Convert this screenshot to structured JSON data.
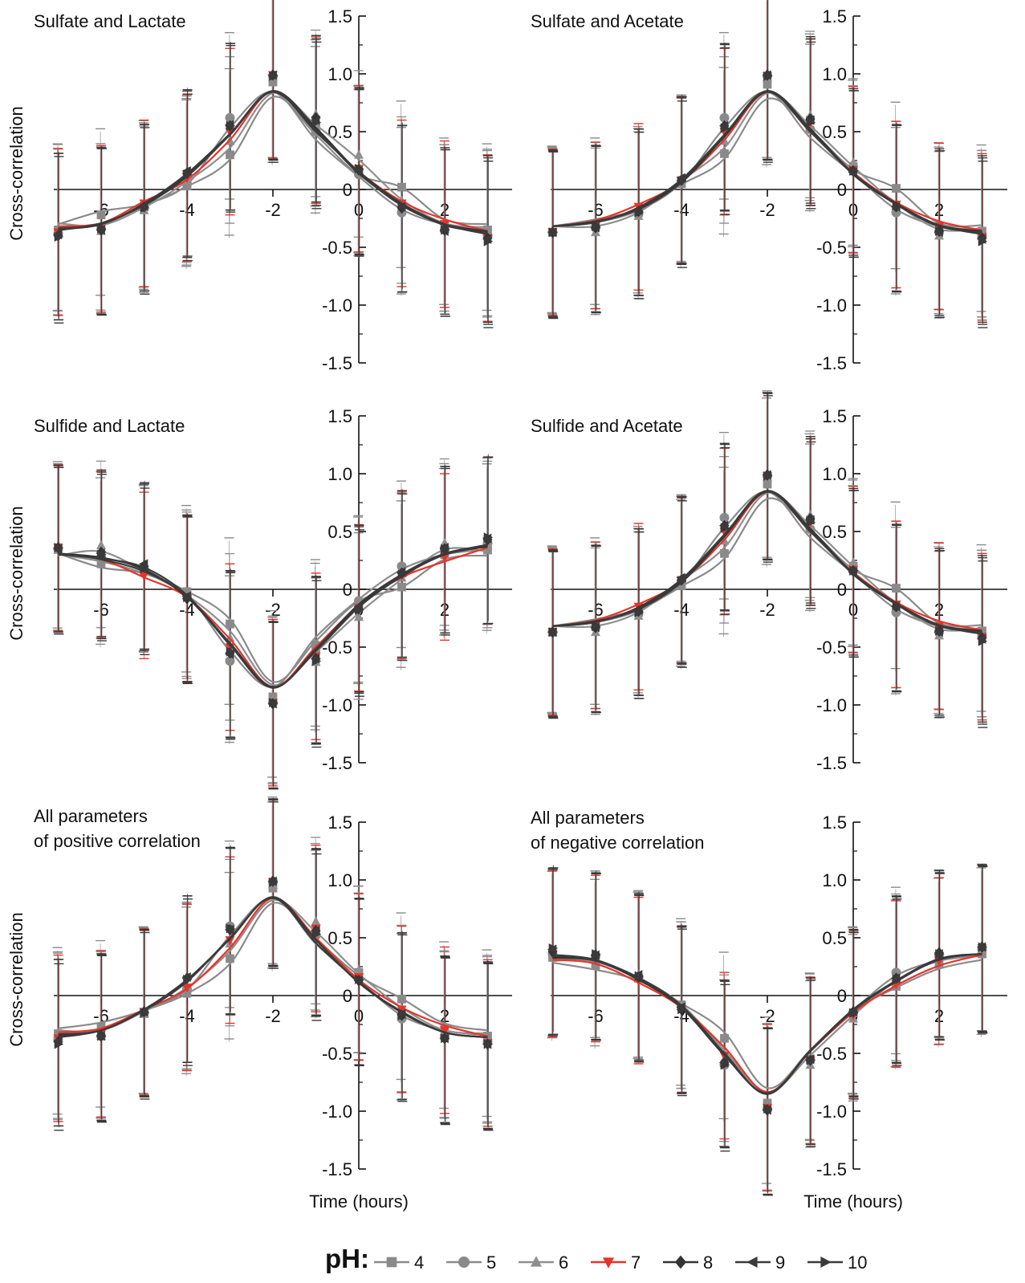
{
  "chart_data": [
    {
      "type": "line",
      "title": "Sulfate and Lactate",
      "xlabel": "",
      "ylabel": "Cross-correlation",
      "x": [
        -7,
        -6,
        -5,
        -4,
        -3,
        -2,
        -1,
        0,
        1,
        2,
        3
      ],
      "xticks": [
        "-6",
        "-4",
        "-2",
        "0",
        "2"
      ],
      "yticks": [
        "1.5",
        "1.0",
        "0.5",
        "0",
        "-0.5",
        "-1.0",
        "-1.5"
      ],
      "ylim": [
        -1.5,
        1.5
      ],
      "series": [
        {
          "name": "4",
          "values": [
            -0.35,
            -0.22,
            -0.15,
            0.03,
            0.3,
            0.93,
            0.55,
            0.15,
            0.02,
            -0.3,
            -0.35
          ]
        },
        {
          "name": "5",
          "values": [
            -0.38,
            -0.34,
            -0.16,
            0.05,
            0.62,
            0.98,
            0.5,
            0.13,
            -0.2,
            -0.35,
            -0.4
          ]
        },
        {
          "name": "6",
          "values": [
            -0.34,
            -0.36,
            -0.18,
            0.08,
            0.42,
            0.97,
            0.65,
            0.3,
            -0.1,
            -0.34,
            -0.38
          ]
        },
        {
          "name": "7",
          "values": [
            -0.37,
            -0.34,
            -0.12,
            0.1,
            0.5,
            0.99,
            0.6,
            0.18,
            -0.12,
            -0.3,
            -0.42
          ]
        },
        {
          "name": "8",
          "values": [
            -0.4,
            -0.35,
            -0.15,
            0.14,
            0.55,
            0.99,
            0.62,
            0.17,
            -0.16,
            -0.35,
            -0.42
          ]
        },
        {
          "name": "9",
          "values": [
            -0.39,
            -0.35,
            -0.14,
            0.16,
            0.56,
            0.99,
            0.6,
            0.16,
            -0.15,
            -0.36,
            -0.43
          ]
        },
        {
          "name": "10",
          "values": [
            -0.41,
            -0.34,
            -0.16,
            0.13,
            0.55,
            0.98,
            0.58,
            0.18,
            -0.14,
            -0.35,
            -0.45
          ]
        }
      ],
      "error": 0.72
    },
    {
      "type": "line",
      "title": "Sulfate and Acetate",
      "xlabel": "",
      "ylabel": "",
      "x": [
        -7,
        -6,
        -5,
        -4,
        -3,
        -2,
        -1,
        0,
        1,
        2,
        3
      ],
      "xticks": [
        "-6",
        "-4",
        "-2",
        "0",
        "2"
      ],
      "yticks": [
        "1.5",
        "1.0",
        "0.5",
        "0",
        "-0.5",
        "-1.0",
        "-1.5"
      ],
      "ylim": [
        -1.5,
        1.5
      ],
      "series": [
        {
          "name": "4",
          "values": [
            -0.37,
            -0.3,
            -0.2,
            0.05,
            0.31,
            0.91,
            0.6,
            0.2,
            0.01,
            -0.34,
            -0.36
          ]
        },
        {
          "name": "5",
          "values": [
            -0.37,
            -0.33,
            -0.21,
            0.07,
            0.62,
            0.98,
            0.52,
            0.16,
            -0.2,
            -0.37,
            -0.4
          ]
        },
        {
          "name": "6",
          "values": [
            -0.37,
            -0.37,
            -0.23,
            0.09,
            0.42,
            0.97,
            0.64,
            0.23,
            -0.14,
            -0.4,
            -0.39
          ]
        },
        {
          "name": "7",
          "values": [
            -0.37,
            -0.31,
            -0.15,
            0.08,
            0.5,
            0.98,
            0.58,
            0.17,
            -0.13,
            -0.32,
            -0.41
          ]
        },
        {
          "name": "8",
          "values": [
            -0.37,
            -0.33,
            -0.19,
            0.08,
            0.55,
            0.99,
            0.61,
            0.16,
            -0.15,
            -0.36,
            -0.42
          ]
        },
        {
          "name": "9",
          "values": [
            -0.37,
            -0.33,
            -0.18,
            0.1,
            0.55,
            0.99,
            0.6,
            0.15,
            -0.15,
            -0.37,
            -0.43
          ]
        },
        {
          "name": "10",
          "values": [
            -0.37,
            -0.32,
            -0.2,
            0.07,
            0.53,
            0.98,
            0.58,
            0.16,
            -0.14,
            -0.36,
            -0.45
          ]
        }
      ],
      "error": 0.72
    },
    {
      "type": "line",
      "title": "Sulfide and Lactate",
      "xlabel": "",
      "ylabel": "Cross-correlation",
      "x": [
        -7,
        -6,
        -5,
        -4,
        -3,
        -2,
        -1,
        0,
        1,
        2,
        3
      ],
      "xticks": [
        "-6",
        "-4",
        "-2",
        "0",
        "2"
      ],
      "yticks": [
        "1.5",
        "1.0",
        "0.5",
        "0",
        "-0.5",
        "-1.0",
        "-1.5"
      ],
      "ylim": [
        -1.5,
        1.5
      ],
      "series": [
        {
          "name": "4",
          "values": [
            0.36,
            0.22,
            0.16,
            -0.02,
            -0.3,
            -0.93,
            -0.52,
            -0.12,
            0.02,
            0.3,
            0.34
          ]
        },
        {
          "name": "5",
          "values": [
            0.35,
            0.28,
            0.16,
            -0.05,
            -0.62,
            -0.98,
            -0.48,
            -0.1,
            0.2,
            0.35,
            0.4
          ]
        },
        {
          "name": "6",
          "values": [
            0.34,
            0.38,
            0.18,
            -0.06,
            -0.42,
            -0.96,
            -0.63,
            -0.24,
            0.1,
            0.4,
            0.38
          ]
        },
        {
          "name": "7",
          "values": [
            0.36,
            0.3,
            0.12,
            -0.08,
            -0.5,
            -0.98,
            -0.58,
            -0.16,
            0.12,
            0.28,
            0.42
          ]
        },
        {
          "name": "8",
          "values": [
            0.36,
            0.32,
            0.2,
            -0.08,
            -0.55,
            -0.99,
            -0.6,
            -0.17,
            0.14,
            0.35,
            0.43
          ]
        },
        {
          "name": "9",
          "values": [
            0.35,
            0.31,
            0.22,
            -0.06,
            -0.56,
            -0.99,
            -0.6,
            -0.15,
            0.15,
            0.36,
            0.44
          ]
        },
        {
          "name": "10",
          "values": [
            0.36,
            0.3,
            0.18,
            -0.07,
            -0.54,
            -0.98,
            -0.62,
            -0.18,
            0.13,
            0.35,
            0.45
          ]
        }
      ],
      "error": 0.72
    },
    {
      "type": "line",
      "title": "Sulfide and Acetate",
      "xlabel": "",
      "ylabel": "",
      "x": [
        -7,
        -6,
        -5,
        -4,
        -3,
        -2,
        -1,
        0,
        1,
        2,
        3
      ],
      "xticks": [
        "-6",
        "-4",
        "-2",
        "0",
        "2"
      ],
      "yticks": [
        "1.5",
        "1.0",
        "0.5",
        "0",
        "-0.5",
        "-1.0",
        "-1.5"
      ],
      "ylim": [
        -1.5,
        1.5
      ],
      "series": [
        {
          "name": "4",
          "values": [
            -0.37,
            -0.3,
            -0.2,
            0.03,
            0.31,
            0.91,
            0.6,
            0.2,
            0.01,
            -0.34,
            -0.36
          ]
        },
        {
          "name": "5",
          "values": [
            -0.37,
            -0.33,
            -0.21,
            0.07,
            0.62,
            0.98,
            0.52,
            0.16,
            -0.2,
            -0.37,
            -0.4
          ]
        },
        {
          "name": "6",
          "values": [
            -0.37,
            -0.37,
            -0.23,
            0.09,
            0.42,
            0.97,
            0.64,
            0.23,
            -0.14,
            -0.4,
            -0.39
          ]
        },
        {
          "name": "7",
          "values": [
            -0.37,
            -0.31,
            -0.15,
            0.08,
            0.5,
            0.98,
            0.58,
            0.17,
            -0.13,
            -0.32,
            -0.41
          ]
        },
        {
          "name": "8",
          "values": [
            -0.37,
            -0.33,
            -0.19,
            0.08,
            0.55,
            0.99,
            0.61,
            0.16,
            -0.15,
            -0.36,
            -0.42
          ]
        },
        {
          "name": "9",
          "values": [
            -0.37,
            -0.33,
            -0.18,
            0.1,
            0.55,
            0.99,
            0.6,
            0.15,
            -0.15,
            -0.37,
            -0.43
          ]
        },
        {
          "name": "10",
          "values": [
            -0.37,
            -0.32,
            -0.2,
            0.07,
            0.53,
            0.98,
            0.58,
            0.16,
            -0.14,
            -0.36,
            -0.45
          ]
        }
      ],
      "error": 0.72
    },
    {
      "type": "line",
      "title": "All parameters\nof positive correlation",
      "xlabel": "Time (hours)",
      "ylabel": "Cross-correlation",
      "x": [
        -7,
        -6,
        -5,
        -4,
        -3,
        -2,
        -1,
        0,
        1,
        2,
        3
      ],
      "xticks": [
        "-6",
        "-4",
        "-2",
        "0",
        "2"
      ],
      "yticks": [
        "1.5",
        "1.0",
        "0.5",
        "0",
        "-0.5",
        "-1.0",
        "-1.5"
      ],
      "ylim": [
        -1.5,
        1.5
      ],
      "series": [
        {
          "name": "4",
          "values": [
            -0.33,
            -0.27,
            -0.15,
            0.02,
            0.32,
            0.93,
            0.57,
            0.2,
            -0.03,
            -0.28,
            -0.35
          ]
        },
        {
          "name": "5",
          "values": [
            -0.37,
            -0.35,
            -0.15,
            0.06,
            0.6,
            0.98,
            0.52,
            0.15,
            -0.2,
            -0.35,
            -0.4
          ]
        },
        {
          "name": "6",
          "values": [
            -0.35,
            -0.35,
            -0.16,
            0.08,
            0.45,
            0.96,
            0.64,
            0.22,
            -0.12,
            -0.35,
            -0.38
          ]
        },
        {
          "name": "7",
          "values": [
            -0.37,
            -0.33,
            -0.14,
            0.07,
            0.48,
            0.98,
            0.58,
            0.16,
            -0.12,
            -0.3,
            -0.41
          ]
        },
        {
          "name": "8",
          "values": [
            -0.4,
            -0.35,
            -0.14,
            0.15,
            0.57,
            0.99,
            0.56,
            0.13,
            -0.17,
            -0.37,
            -0.42
          ]
        },
        {
          "name": "9",
          "values": [
            -0.39,
            -0.35,
            -0.14,
            0.16,
            0.57,
            0.99,
            0.56,
            0.13,
            -0.16,
            -0.37,
            -0.42
          ]
        },
        {
          "name": "10",
          "values": [
            -0.42,
            -0.35,
            -0.15,
            0.14,
            0.58,
            0.98,
            0.53,
            0.14,
            -0.17,
            -0.37,
            -0.42
          ]
        }
      ],
      "error": 0.72
    },
    {
      "type": "line",
      "title": "All parameters\nof negative correlation",
      "xlabel": "Time (hours)",
      "ylabel": "",
      "x": [
        -7,
        -6,
        -5,
        -4,
        -3,
        -2,
        -1,
        0,
        1,
        2,
        3
      ],
      "xticks": [
        "-6",
        "-4",
        "-2",
        "0",
        "2"
      ],
      "yticks": [
        "1.5",
        "1.0",
        "0.5",
        "0",
        "-0.5",
        "-1.0",
        "-1.5"
      ],
      "ylim": [
        -1.5,
        1.5
      ],
      "series": [
        {
          "name": "4",
          "values": [
            0.33,
            0.26,
            0.15,
            -0.08,
            -0.37,
            -0.93,
            -0.55,
            -0.15,
            0.08,
            0.27,
            0.36
          ]
        },
        {
          "name": "5",
          "values": [
            0.36,
            0.34,
            0.16,
            -0.1,
            -0.6,
            -0.98,
            -0.55,
            -0.15,
            0.2,
            0.35,
            0.4
          ]
        },
        {
          "name": "6",
          "values": [
            0.35,
            0.35,
            0.18,
            -0.09,
            -0.55,
            -0.97,
            -0.6,
            -0.2,
            0.15,
            0.35,
            0.4
          ]
        },
        {
          "name": "7",
          "values": [
            0.36,
            0.32,
            0.13,
            -0.12,
            -0.52,
            -0.97,
            -0.56,
            -0.17,
            0.1,
            0.3,
            0.41
          ]
        },
        {
          "name": "8",
          "values": [
            0.38,
            0.35,
            0.16,
            -0.12,
            -0.58,
            -0.99,
            -0.56,
            -0.14,
            0.15,
            0.37,
            0.42
          ]
        },
        {
          "name": "9",
          "values": [
            0.4,
            0.35,
            0.18,
            -0.1,
            -0.58,
            -0.99,
            -0.55,
            -0.14,
            0.15,
            0.36,
            0.42
          ]
        },
        {
          "name": "10",
          "values": [
            0.41,
            0.36,
            0.17,
            -0.12,
            -0.6,
            -0.98,
            -0.56,
            -0.15,
            0.14,
            0.36,
            0.42
          ]
        }
      ],
      "error": 0.72
    }
  ],
  "legend": {
    "title": "pH:",
    "entries": [
      {
        "label": "4",
        "color": "#8a8a8a",
        "marker": "square"
      },
      {
        "label": "5",
        "color": "#8a8a8a",
        "marker": "circle"
      },
      {
        "label": "6",
        "color": "#8f8f8f",
        "marker": "triangle-up"
      },
      {
        "label": "7",
        "color": "#e8332a",
        "marker": "triangle-down"
      },
      {
        "label": "8",
        "color": "#333333",
        "marker": "diamond"
      },
      {
        "label": "9",
        "color": "#3a3a3a",
        "marker": "triangle-left"
      },
      {
        "label": "10",
        "color": "#3a3a3a",
        "marker": "triangle-right"
      }
    ]
  }
}
